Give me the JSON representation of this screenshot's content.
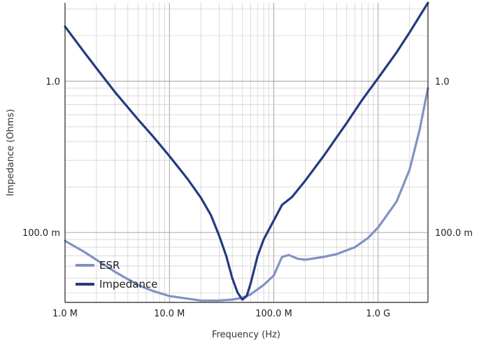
{
  "chart_data": {
    "type": "line",
    "title": "",
    "xlabel": "Frequency (Hz)",
    "ylabel": "Impedance (Ohms)",
    "x_scale": "log",
    "y_scale": "log",
    "xlim": [
      1000000,
      3000000000
    ],
    "ylim": [
      0.0345,
      3.3
    ],
    "grid": true,
    "legend_position": "bottom-left",
    "x_ticks": [
      {
        "value": 1000000,
        "label": "1.0 M"
      },
      {
        "value": 10000000,
        "label": "10.0 M"
      },
      {
        "value": 100000000,
        "label": "100.0 M"
      },
      {
        "value": 1000000000,
        "label": "1.0 G"
      }
    ],
    "y_ticks": [
      {
        "value": 0.1,
        "label": "100.0 m"
      },
      {
        "value": 1.0,
        "label": "1.0"
      }
    ],
    "series": [
      {
        "name": "ESR",
        "color": "#8191c6",
        "x": [
          1000000,
          1500000,
          2000000,
          3000000,
          5000000,
          7000000,
          10000000,
          15000000,
          20000000,
          30000000,
          40000000,
          50000000,
          60000000,
          80000000,
          100000000,
          120000000,
          140000000,
          170000000,
          200000000,
          300000000,
          400000000,
          600000000,
          800000000,
          1000000000,
          1500000000,
          2000000000,
          2500000000,
          3000000000
        ],
        "y": [
          0.088,
          0.075,
          0.066,
          0.055,
          0.045,
          0.041,
          0.038,
          0.0365,
          0.0355,
          0.0355,
          0.036,
          0.037,
          0.039,
          0.045,
          0.052,
          0.069,
          0.071,
          0.067,
          0.066,
          0.069,
          0.072,
          0.08,
          0.092,
          0.108,
          0.16,
          0.26,
          0.48,
          0.9
        ]
      },
      {
        "name": "Impedance",
        "color": "#253a80",
        "x": [
          1000000,
          1500000,
          2000000,
          3000000,
          5000000,
          7000000,
          10000000,
          15000000,
          20000000,
          25000000,
          30000000,
          35000000,
          40000000,
          45000000,
          50000000,
          55000000,
          60000000,
          70000000,
          80000000,
          100000000,
          120000000,
          150000000,
          200000000,
          300000000,
          500000000,
          700000000,
          1000000000,
          1500000000,
          2000000000,
          3000000000
        ],
        "y": [
          2.3,
          1.58,
          1.22,
          0.85,
          0.56,
          0.43,
          0.32,
          0.225,
          0.17,
          0.13,
          0.095,
          0.07,
          0.05,
          0.04,
          0.036,
          0.038,
          0.046,
          0.07,
          0.09,
          0.12,
          0.152,
          0.172,
          0.22,
          0.32,
          0.53,
          0.75,
          1.05,
          1.55,
          2.1,
          3.3
        ]
      }
    ]
  }
}
